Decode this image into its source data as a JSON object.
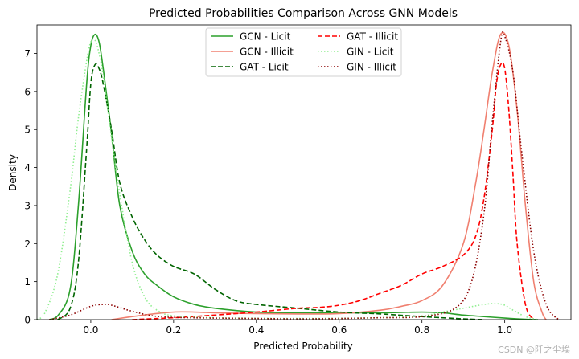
{
  "watermark": "CSDN @阡之尘埃",
  "chart_data": {
    "type": "line",
    "title": "Predicted Probabilities Comparison Across GNN Models",
    "xlabel": "Predicted Probability",
    "ylabel": "Density",
    "xlim": [
      -0.13,
      1.16
    ],
    "ylim": [
      0,
      7.75
    ],
    "xticks": [
      0.0,
      0.2,
      0.4,
      0.6,
      0.8,
      1.0
    ],
    "xtick_labels": [
      "0.0",
      "0.2",
      "0.4",
      "0.6",
      "0.8",
      "1.0"
    ],
    "yticks": [
      0,
      1,
      2,
      3,
      4,
      5,
      6,
      7
    ],
    "ytick_labels": [
      "0",
      "1",
      "2",
      "3",
      "4",
      "5",
      "6",
      "7"
    ],
    "grid": false,
    "legend_position": "top-center",
    "legend_columns": 2,
    "series": [
      {
        "name": "GCN - Licit",
        "color": "#2ca02c",
        "style": "solid",
        "x": [
          -0.1,
          -0.08,
          -0.05,
          -0.03,
          -0.01,
          0.0,
          0.01,
          0.02,
          0.03,
          0.05,
          0.07,
          0.1,
          0.13,
          0.16,
          0.2,
          0.25,
          0.3,
          0.4,
          0.5,
          0.6,
          0.7,
          0.8,
          0.85,
          0.9,
          0.95,
          1.0,
          1.03,
          1.05,
          1.08
        ],
        "y": [
          0.0,
          0.1,
          0.8,
          3.0,
          6.2,
          7.2,
          7.5,
          7.3,
          6.6,
          4.9,
          3.0,
          1.8,
          1.2,
          0.9,
          0.6,
          0.4,
          0.3,
          0.2,
          0.18,
          0.18,
          0.18,
          0.2,
          0.18,
          0.12,
          0.08,
          0.04,
          0.02,
          0.01,
          0.0
        ]
      },
      {
        "name": "GCN - Illicit",
        "color": "#f08070",
        "style": "solid",
        "x": [
          0.05,
          0.1,
          0.15,
          0.2,
          0.25,
          0.3,
          0.4,
          0.5,
          0.6,
          0.7,
          0.75,
          0.8,
          0.85,
          0.9,
          0.93,
          0.95,
          0.97,
          0.99,
          1.01,
          1.03,
          1.05,
          1.07,
          1.09,
          1.1
        ],
        "y": [
          0.0,
          0.08,
          0.15,
          0.2,
          0.2,
          0.18,
          0.16,
          0.15,
          0.16,
          0.25,
          0.35,
          0.5,
          0.9,
          2.0,
          3.6,
          5.0,
          6.5,
          7.5,
          7.2,
          5.5,
          3.0,
          1.0,
          0.2,
          0.0
        ]
      },
      {
        "name": "GAT - Licit",
        "color": "#006400",
        "style": "dashed",
        "x": [
          -0.08,
          -0.05,
          -0.03,
          -0.01,
          0.0,
          0.01,
          0.02,
          0.03,
          0.05,
          0.07,
          0.1,
          0.13,
          0.16,
          0.2,
          0.25,
          0.3,
          0.35,
          0.4,
          0.5,
          0.6,
          0.7,
          0.8,
          0.9,
          0.95
        ],
        "y": [
          0.0,
          0.3,
          1.5,
          4.5,
          6.2,
          6.7,
          6.6,
          6.2,
          5.0,
          3.6,
          2.7,
          2.1,
          1.7,
          1.4,
          1.2,
          0.8,
          0.5,
          0.4,
          0.3,
          0.2,
          0.15,
          0.08,
          0.02,
          0.0
        ]
      },
      {
        "name": "GAT - Illicit",
        "color": "#ff0000",
        "style": "dashed",
        "x": [
          0.1,
          0.2,
          0.3,
          0.4,
          0.5,
          0.55,
          0.6,
          0.65,
          0.7,
          0.75,
          0.8,
          0.85,
          0.9,
          0.93,
          0.95,
          0.97,
          0.98,
          0.99,
          1.0,
          1.01,
          1.02,
          1.03,
          1.05,
          1.07
        ],
        "y": [
          0.0,
          0.05,
          0.12,
          0.2,
          0.3,
          0.32,
          0.38,
          0.5,
          0.7,
          0.9,
          1.2,
          1.4,
          1.7,
          2.2,
          3.2,
          5.0,
          6.2,
          6.7,
          6.6,
          5.5,
          3.8,
          2.0,
          0.4,
          0.0
        ]
      },
      {
        "name": "GIN - Licit",
        "color": "#90ee90",
        "style": "dotted",
        "x": [
          -0.13,
          -0.11,
          -0.08,
          -0.05,
          -0.03,
          -0.01,
          0.0,
          0.01,
          0.02,
          0.03,
          0.05,
          0.07,
          0.1,
          0.13,
          0.16,
          0.2,
          0.3,
          0.5,
          0.7,
          0.8,
          0.85,
          0.9,
          0.95,
          0.98,
          1.0,
          1.02,
          1.05,
          1.08
        ],
        "y": [
          0.0,
          0.2,
          1.2,
          3.4,
          5.3,
          6.8,
          7.3,
          7.35,
          7.0,
          6.4,
          4.8,
          3.3,
          1.5,
          0.6,
          0.25,
          0.1,
          0.05,
          0.03,
          0.05,
          0.1,
          0.2,
          0.3,
          0.4,
          0.42,
          0.38,
          0.25,
          0.08,
          0.0
        ]
      },
      {
        "name": "GIN - Illicit",
        "color": "#8b0000",
        "style": "dotted",
        "x": [
          -0.1,
          -0.05,
          0.0,
          0.03,
          0.05,
          0.1,
          0.15,
          0.2,
          0.3,
          0.4,
          0.5,
          0.6,
          0.7,
          0.8,
          0.88,
          0.92,
          0.95,
          0.97,
          0.99,
          1.0,
          1.02,
          1.04,
          1.07,
          1.1,
          1.13
        ],
        "y": [
          0.0,
          0.12,
          0.35,
          0.4,
          0.38,
          0.22,
          0.1,
          0.06,
          0.04,
          0.03,
          0.02,
          0.03,
          0.05,
          0.08,
          0.3,
          1.0,
          2.8,
          5.2,
          7.3,
          7.45,
          6.5,
          4.5,
          1.8,
          0.4,
          0.0
        ]
      }
    ]
  }
}
